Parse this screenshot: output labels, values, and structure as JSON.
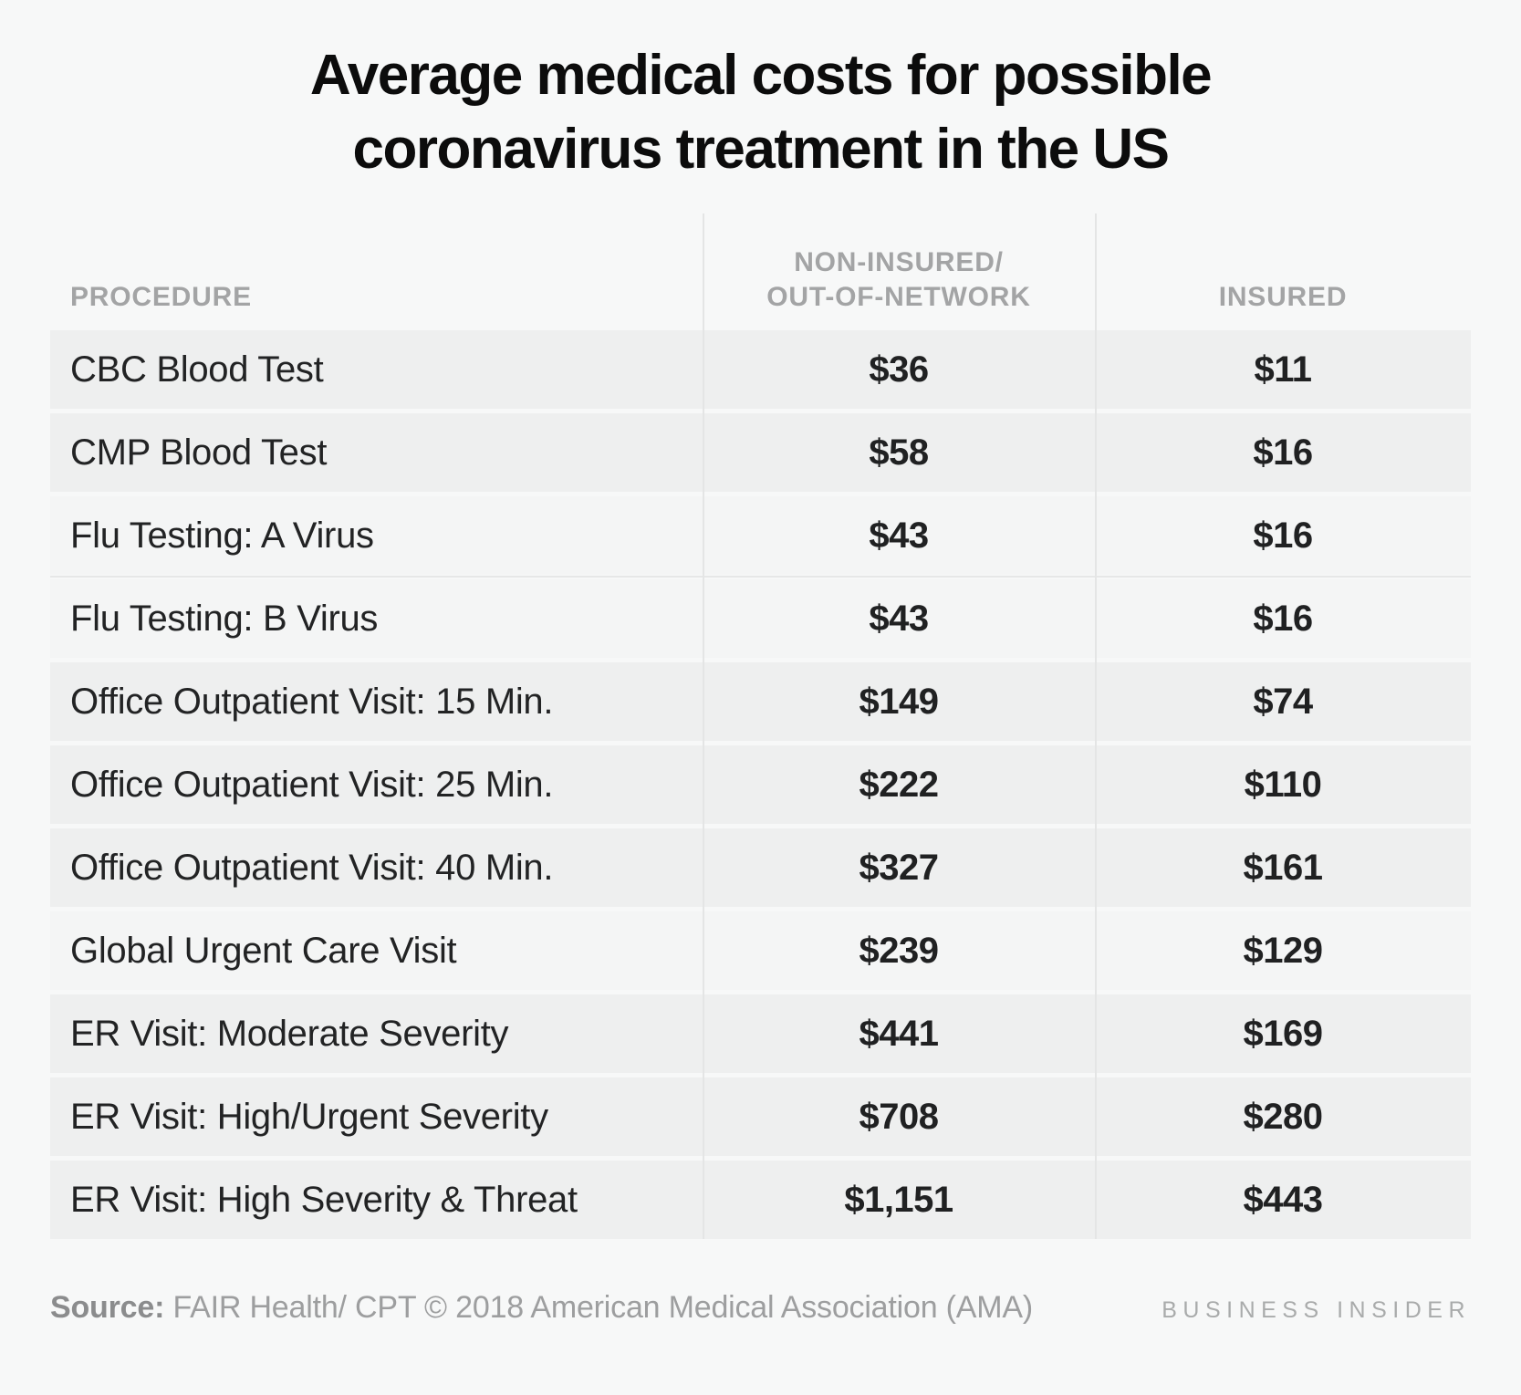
{
  "title": "Average medical costs for possible coronavirus treatment in the US",
  "table": {
    "columns": [
      {
        "label": "PROCEDURE"
      },
      {
        "lines": [
          "NON-INSURED/",
          "OUT-OF-NETWORK"
        ]
      },
      {
        "label": "INSURED"
      }
    ],
    "rows": [
      {
        "procedure": "CBC Blood Test",
        "non_insured": "$36",
        "insured": "$11",
        "shaded": true
      },
      {
        "procedure": "CMP Blood Test",
        "non_insured": "$58",
        "insured": "$16",
        "shaded": true
      },
      {
        "procedure": "Flu Testing: A Virus",
        "non_insured": "$43",
        "insured": "$16",
        "shaded": false
      },
      {
        "procedure": "Flu Testing: B Virus",
        "non_insured": "$43",
        "insured": "$16",
        "shaded": false
      },
      {
        "procedure": "Office Outpatient Visit: 15 Min.",
        "non_insured": "$149",
        "insured": "$74",
        "shaded": true
      },
      {
        "procedure": "Office Outpatient Visit: 25 Min.",
        "non_insured": "$222",
        "insured": "$110",
        "shaded": true
      },
      {
        "procedure": "Office Outpatient Visit: 40 Min.",
        "non_insured": "$327",
        "insured": "$161",
        "shaded": true
      },
      {
        "procedure": "Global Urgent Care Visit",
        "non_insured": "$239",
        "insured": "$129",
        "shaded": false
      },
      {
        "procedure": "ER Visit: Moderate Severity",
        "non_insured": "$441",
        "insured": "$169",
        "shaded": true
      },
      {
        "procedure": "ER Visit: High/Urgent Severity",
        "non_insured": "$708",
        "insured": "$280",
        "shaded": true
      },
      {
        "procedure": "ER Visit: High Severity & Threat",
        "non_insured": "$1,151",
        "insured": "$443",
        "shaded": true
      }
    ]
  },
  "footer": {
    "source_label": "Source:",
    "source_text": "FAIR Health/ CPT © 2018 American Medical Association (AMA)",
    "brand": "BUSINESS INSIDER"
  },
  "colors": {
    "page_background": "#f7f8f8",
    "shaded_row": "#eeefef",
    "light_row": "#f4f5f5",
    "divider_line": "#e4e5e5",
    "title_text": "#0c0c0c",
    "header_text": "#a3a4a5",
    "body_text": "#222324",
    "footer_text": "#9d9e9f"
  },
  "chart_data": {
    "type": "table",
    "title": "Average medical costs for possible coronavirus treatment in the US",
    "columns": [
      "PROCEDURE",
      "NON-INSURED/OUT-OF-NETWORK",
      "INSURED"
    ],
    "categories": [
      "CBC Blood Test",
      "CMP Blood Test",
      "Flu Testing: A Virus",
      "Flu Testing: B Virus",
      "Office Outpatient Visit: 15 Min.",
      "Office Outpatient Visit: 25 Min.",
      "Office Outpatient Visit: 40 Min.",
      "Global Urgent Care Visit",
      "ER Visit: Moderate Severity",
      "ER Visit: High/Urgent Severity",
      "ER Visit: High Severity & Threat"
    ],
    "series": [
      {
        "name": "NON-INSURED/OUT-OF-NETWORK",
        "values": [
          36,
          58,
          43,
          43,
          149,
          222,
          327,
          239,
          441,
          708,
          1151
        ]
      },
      {
        "name": "INSURED",
        "values": [
          11,
          16,
          16,
          16,
          74,
          110,
          161,
          129,
          169,
          280,
          443
        ]
      }
    ],
    "units": "USD",
    "source": "Source: FAIR Health/ CPT © 2018 American Medical Association (AMA)",
    "attribution": "BUSINESS INSIDER"
  }
}
